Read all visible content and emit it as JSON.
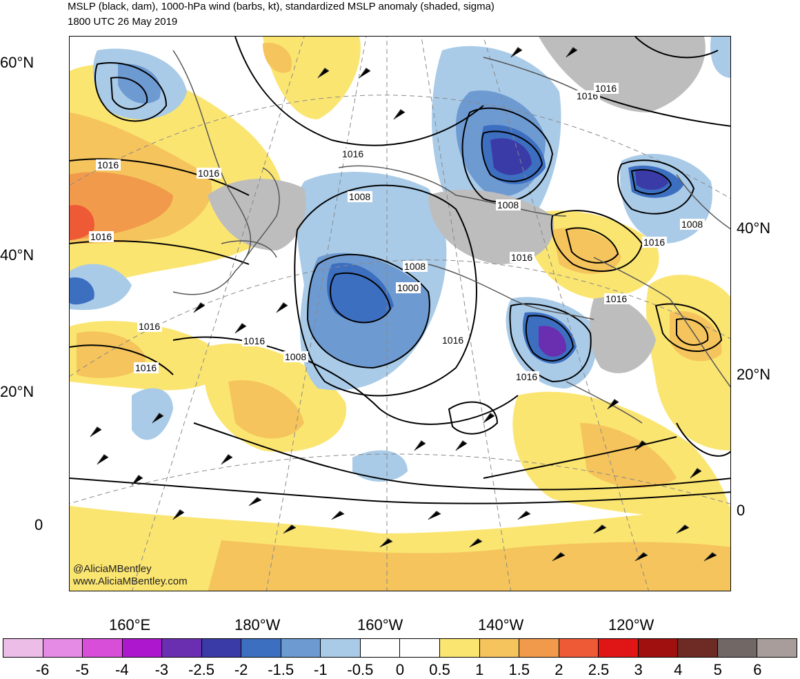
{
  "title": {
    "line1": "MSLP (black, dam), 1000-hPa wind (barbs, kt), standardized MSLP anomaly (shaded, sigma)",
    "line2": "1800 UTC 26 May 2019"
  },
  "credit": {
    "twitter": "@AliciaMBentley",
    "website": "www.AliciaMBentley.com"
  },
  "axes": {
    "lat_left": [
      "60°N",
      "40°N",
      "20°N",
      "0"
    ],
    "lat_right": [
      "40°N",
      "20°N",
      "0"
    ],
    "lon_bottom": [
      "160°E",
      "180°W",
      "160°W",
      "140°W",
      "120°W"
    ]
  },
  "isobar_labels": [
    "1016",
    "1016",
    "1016",
    "1016",
    "1016",
    "1016",
    "1008",
    "1008",
    "1000",
    "1016",
    "1008",
    "1016",
    "1016",
    "1008",
    "1016",
    "1016",
    "1008",
    "1016",
    "1016",
    "1016"
  ],
  "colorbar": {
    "colors": [
      "#ecbde6",
      "#e58ae5",
      "#d84ed8",
      "#ad18cf",
      "#6a2eb0",
      "#3b3ba8",
      "#3d6fc1",
      "#6e9ad2",
      "#a9cbe8",
      "#ffffff",
      "#ffffff",
      "#fbe571",
      "#f5c45c",
      "#f29a4b",
      "#ef5a36",
      "#e01515",
      "#a0100f",
      "#6e2a24",
      "#716866",
      "#a89d9a"
    ],
    "labels": [
      "-6",
      "-5",
      "-4",
      "-3",
      "-2.5",
      "-2",
      "-1.5",
      "-1",
      "-0.5",
      "0",
      "0.5",
      "1",
      "1.5",
      "2",
      "2.5",
      "3",
      "4",
      "5",
      "6"
    ]
  }
}
